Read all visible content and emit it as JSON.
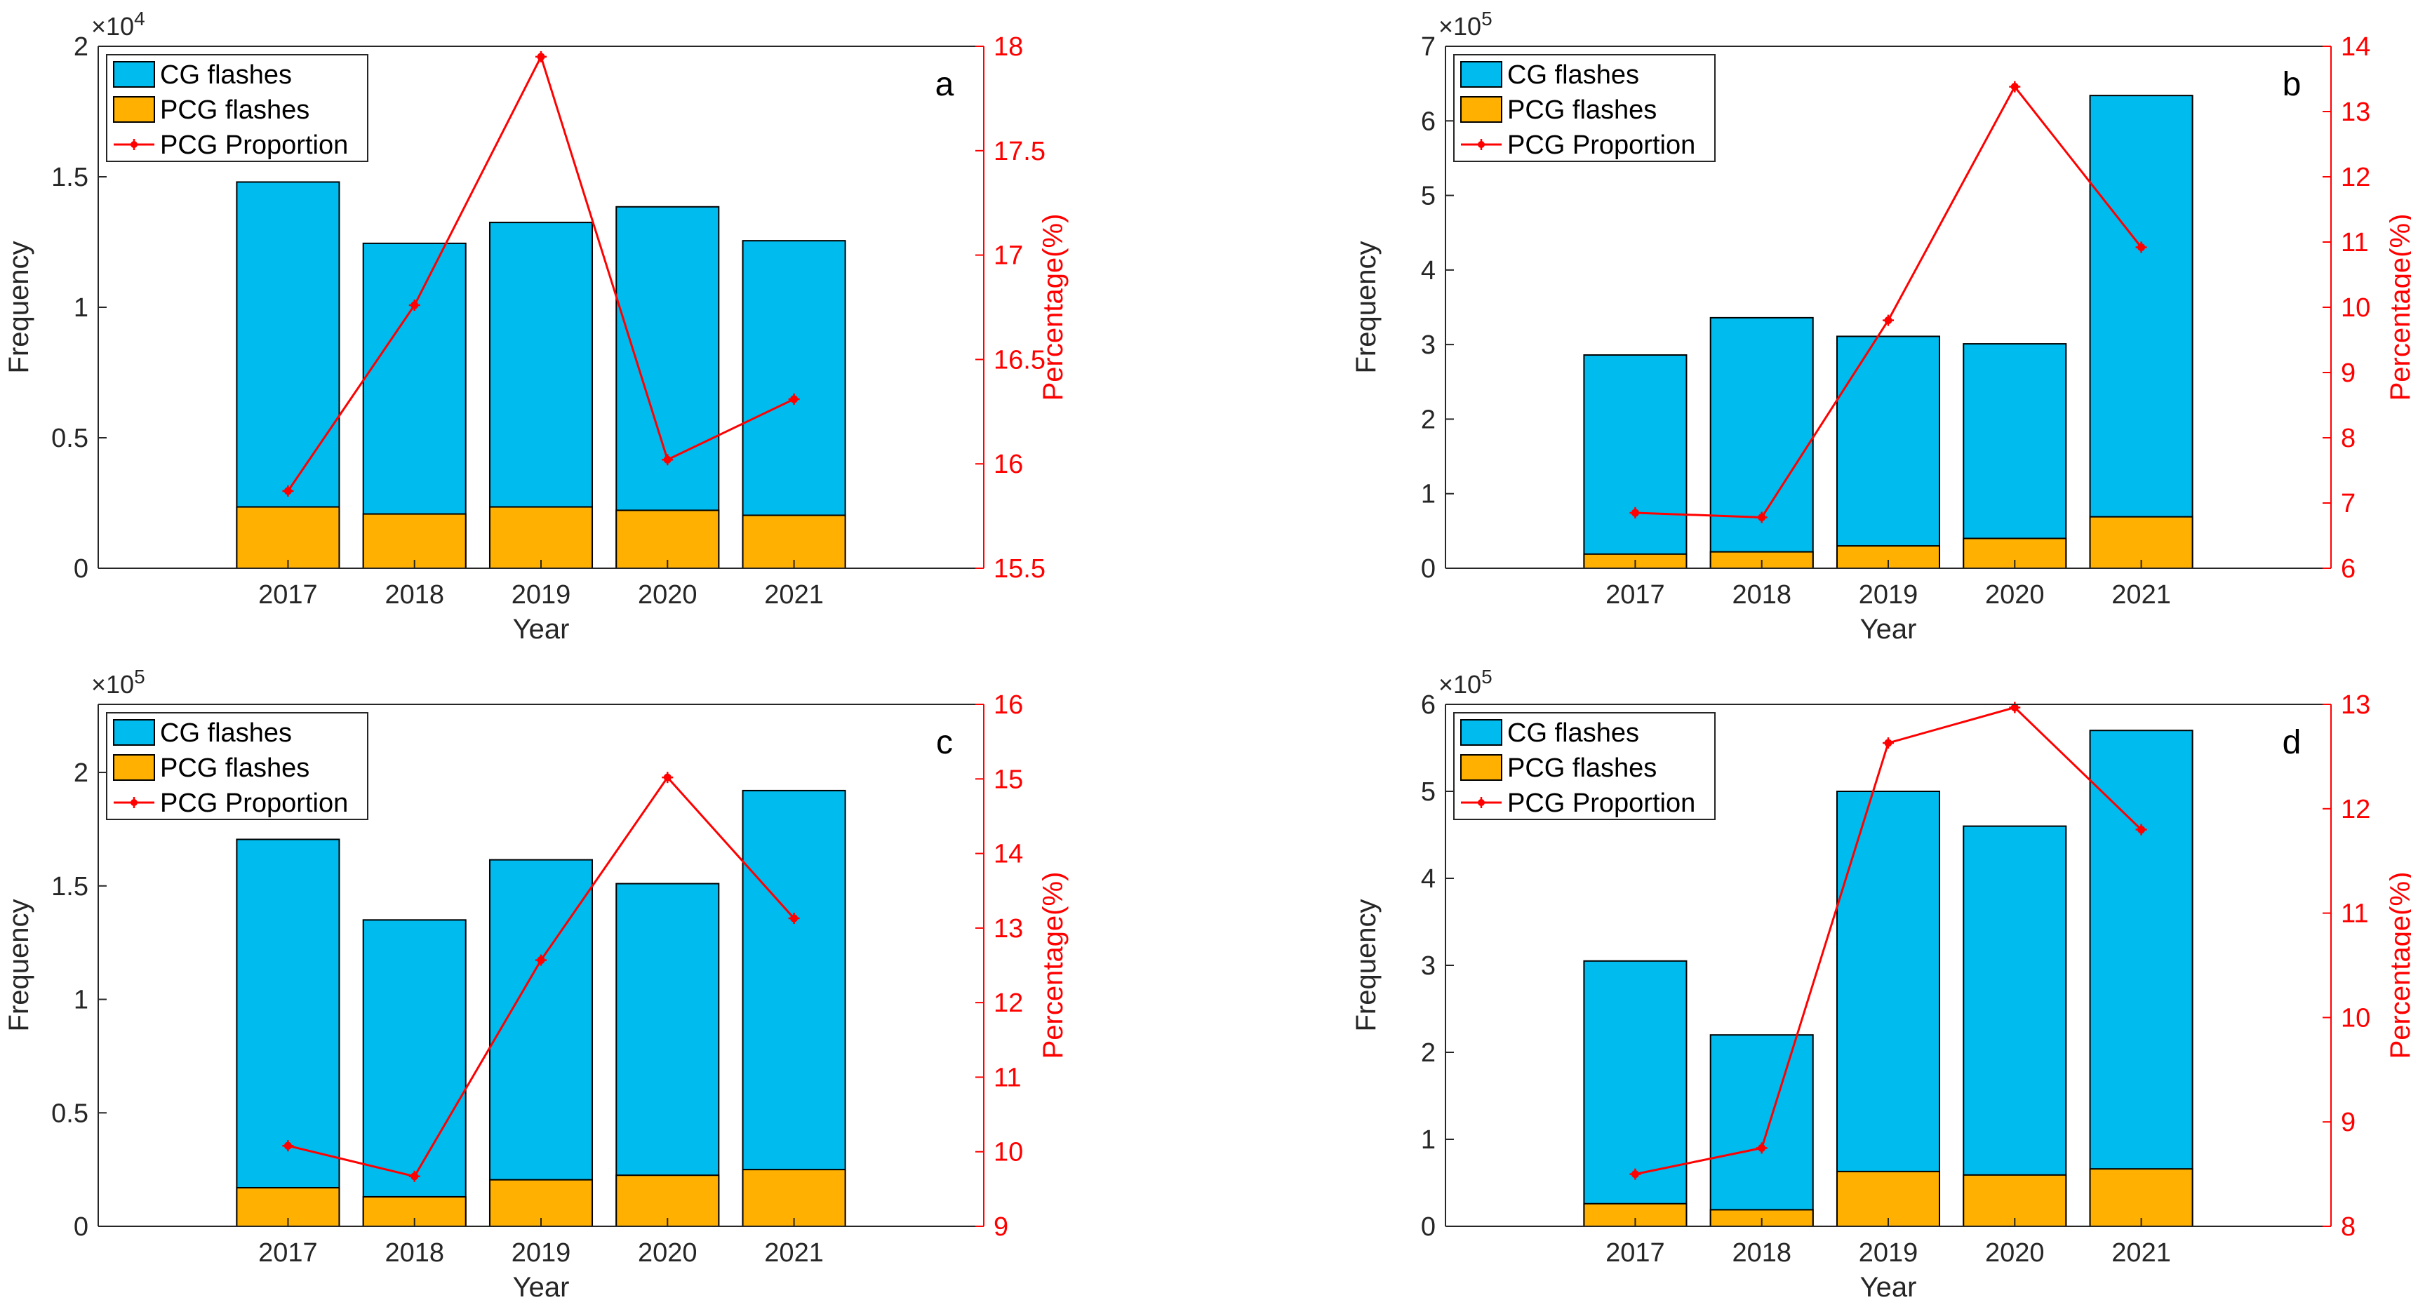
{
  "colors": {
    "cg": "#00BBEE",
    "pcg": "#FFB000",
    "line": "#FF0000",
    "axis": "#262626",
    "rightAxis": "#FF0000"
  },
  "legend": {
    "cg": "CG flashes",
    "pcg": "PCG flashes",
    "line": "PCG Proportion"
  },
  "chart_data": [
    {
      "type": "bar",
      "panel": "a",
      "categories": [
        "2017",
        "2018",
        "2019",
        "2020",
        "2021"
      ],
      "series": [
        {
          "name": "CG flashes",
          "values": [
            14800,
            12450,
            13250,
            13850,
            12550
          ]
        },
        {
          "name": "PCG flashes",
          "values": [
            2350,
            2080,
            2350,
            2220,
            2030
          ]
        },
        {
          "name": "PCG Proportion",
          "axis": "right",
          "type": "line",
          "values": [
            15.87,
            16.76,
            17.95,
            16.02,
            16.31
          ]
        }
      ],
      "xlabel": "Year",
      "ylabel": "Frequency",
      "y2label": "Percentage(%)",
      "multiplier": {
        "base": "×10",
        "exp": "4"
      },
      "ylim": [
        0,
        20000
      ],
      "yticks": [
        0,
        5000,
        10000,
        15000,
        20000
      ],
      "yticklabels": [
        "0",
        "0.5",
        "1",
        "1.5",
        "2"
      ],
      "y2lim": [
        15.5,
        18
      ],
      "y2ticks": [
        "15.5",
        "16",
        "16.5",
        "17",
        "17.5",
        "18"
      ],
      "legend_position": "top-left"
    },
    {
      "type": "bar",
      "panel": "b",
      "categories": [
        "2017",
        "2018",
        "2019",
        "2020",
        "2021"
      ],
      "series": [
        {
          "name": "CG flashes",
          "values": [
            286000,
            336000,
            311000,
            301000,
            634000
          ]
        },
        {
          "name": "PCG flashes",
          "values": [
            19000,
            22000,
            30000,
            40000,
            69000
          ]
        },
        {
          "name": "PCG Proportion",
          "axis": "right",
          "type": "line",
          "values": [
            6.85,
            6.78,
            9.8,
            13.38,
            10.92
          ]
        }
      ],
      "xlabel": "Year",
      "ylabel": "Frequency",
      "y2label": "Percentage(%)",
      "multiplier": {
        "base": "×10",
        "exp": "5"
      },
      "ylim": [
        0,
        700000
      ],
      "yticks": [
        0,
        100000,
        200000,
        300000,
        400000,
        500000,
        600000,
        700000
      ],
      "yticklabels": [
        "0",
        "1",
        "2",
        "3",
        "4",
        "5",
        "6",
        "7"
      ],
      "y2lim": [
        6,
        14
      ],
      "y2ticks": [
        "6",
        "7",
        "8",
        "9",
        "10",
        "11",
        "12",
        "13",
        "14"
      ],
      "legend_position": "top-left"
    },
    {
      "type": "bar",
      "panel": "c",
      "categories": [
        "2017",
        "2018",
        "2019",
        "2020",
        "2021"
      ],
      "series": [
        {
          "name": "CG flashes",
          "values": [
            170500,
            135000,
            161500,
            151000,
            192000
          ]
        },
        {
          "name": "PCG flashes",
          "values": [
            17000,
            13000,
            20500,
            22500,
            25000
          ]
        },
        {
          "name": "PCG Proportion",
          "axis": "right",
          "type": "line",
          "values": [
            10.08,
            9.67,
            12.57,
            15.02,
            13.13
          ]
        }
      ],
      "xlabel": "Year",
      "ylabel": "Frequency",
      "y2label": "Percentage(%)",
      "multiplier": {
        "base": "×10",
        "exp": "5"
      },
      "ylim": [
        0,
        230000
      ],
      "yticks": [
        0,
        50000,
        100000,
        150000,
        200000
      ],
      "yticklabels": [
        "0",
        "0.5",
        "1",
        "1.5",
        "2"
      ],
      "y2lim": [
        9,
        16
      ],
      "y2ticks": [
        "9",
        "10",
        "11",
        "12",
        "13",
        "14",
        "15",
        "16"
      ],
      "legend_position": "top-left"
    },
    {
      "type": "bar",
      "panel": "d",
      "categories": [
        "2017",
        "2018",
        "2019",
        "2020",
        "2021"
      ],
      "series": [
        {
          "name": "CG flashes",
          "values": [
            305000,
            220000,
            500000,
            460000,
            570000
          ]
        },
        {
          "name": "PCG flashes",
          "values": [
            26000,
            19000,
            63000,
            59000,
            66000
          ]
        },
        {
          "name": "PCG Proportion",
          "axis": "right",
          "type": "line",
          "values": [
            8.5,
            8.75,
            12.63,
            12.97,
            11.8
          ]
        }
      ],
      "xlabel": "Year",
      "ylabel": "Frequency",
      "y2label": "Percentage(%)",
      "multiplier": {
        "base": "×10",
        "exp": "5"
      },
      "ylim": [
        0,
        600000
      ],
      "yticks": [
        0,
        100000,
        200000,
        300000,
        400000,
        500000,
        600000
      ],
      "yticklabels": [
        "0",
        "1",
        "2",
        "3",
        "4",
        "5",
        "6"
      ],
      "y2lim": [
        8,
        13
      ],
      "y2ticks": [
        "8",
        "9",
        "10",
        "11",
        "12",
        "13"
      ],
      "legend_position": "top-left"
    }
  ]
}
